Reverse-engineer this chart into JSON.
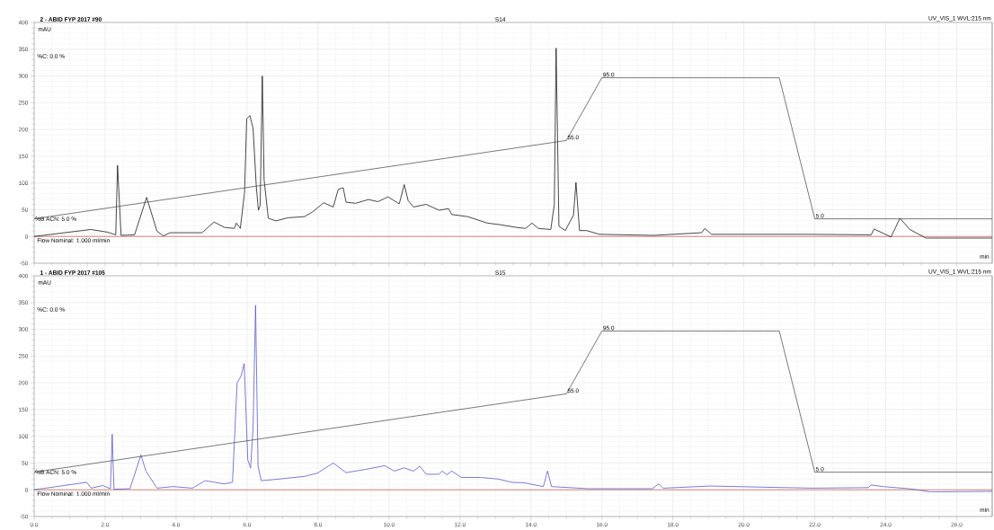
{
  "chart_data": [
    {
      "type": "line",
      "title": "2 - ABID FYP 2017 #90",
      "subtitle": "S14",
      "xlabel": "min",
      "ylabel": "mAU",
      "annotations": [
        "UV_VIS_1 WVL:215 nm",
        "%C: 0.0 %",
        "Flow Nominal: 1.000 ml/min"
      ],
      "xlim": [
        0,
        27
      ],
      "ylim": [
        -50,
        400
      ],
      "xticks": [
        {
          "value": 0,
          "label": null
        },
        {
          "value": 2,
          "label": null
        },
        {
          "value": 4,
          "label": null
        },
        {
          "value": 6,
          "label": null
        },
        {
          "value": 8,
          "label": null
        },
        {
          "value": 10,
          "label": null
        },
        {
          "value": 12,
          "label": null
        },
        {
          "value": 14,
          "label": null
        },
        {
          "value": 16,
          "label": null
        },
        {
          "value": 18,
          "label": null
        },
        {
          "value": 20,
          "label": null
        },
        {
          "value": 22,
          "label": null
        },
        {
          "value": 24,
          "label": null
        },
        {
          "value": 26,
          "label": null
        }
      ],
      "yticks": [
        -50,
        0,
        50,
        100,
        150,
        200,
        250,
        300,
        350,
        400
      ],
      "tick_labels": "y",
      "grid": true,
      "ref_lines": [
        {
          "axis": "y",
          "value": 0,
          "color": "#c0392b"
        }
      ],
      "series": [
        {
          "color": "#1a1a1a",
          "x": [
            0,
            1.6,
            2.07,
            2.3,
            2.35,
            2.45,
            2.83,
            3.17,
            3.46,
            3.64,
            3.83,
            4.73,
            5.07,
            5.36,
            5.64,
            5.7,
            5.81,
            5.93,
            5.99,
            6.08,
            6.17,
            6.26,
            6.32,
            6.37,
            6.43,
            6.48,
            6.6,
            6.81,
            7.16,
            7.62,
            7.85,
            8.07,
            8.16,
            8.43,
            8.57,
            8.71,
            8.79,
            9.06,
            9.42,
            9.69,
            9.97,
            10.29,
            10.43,
            10.54,
            10.69,
            11.05,
            11.41,
            11.68,
            11.77,
            12.22,
            12.77,
            13.13,
            13.58,
            13.85,
            14.03,
            14.21,
            14.56,
            14.66,
            14.71,
            14.79,
            14.97,
            15.2,
            15.27,
            15.37,
            15.57,
            15.93,
            17.46,
            18.81,
            18.9,
            19.09,
            21.7,
            23.59,
            23.67,
            24.15,
            24.4,
            24.68,
            25.13,
            27
          ],
          "values": [
            0,
            13,
            8,
            3,
            133,
            2,
            3,
            73,
            10,
            1,
            7,
            7,
            27,
            17,
            15,
            25,
            15,
            82,
            220,
            226,
            202,
            94,
            49,
            58,
            300,
            106,
            34,
            29,
            35,
            37,
            46,
            58,
            63,
            55,
            88,
            91,
            64,
            62,
            69,
            65,
            74,
            61,
            97,
            67,
            55,
            60,
            49,
            52,
            41,
            37,
            25,
            22,
            17,
            15,
            25,
            15,
            13,
            60,
            352,
            19,
            11,
            40,
            101,
            11,
            11,
            4,
            2,
            7,
            15,
            4,
            4,
            3,
            14,
            -1,
            34,
            13,
            -3,
            -3
          ]
        }
      ]
    },
    {
      "type": "line",
      "xlim": [
        0,
        27
      ],
      "ylim": [
        -23.3,
        130.3
      ],
      "tick_labels": false,
      "series": [
        {
          "color": "#404040",
          "x": [
            0,
            15,
            16,
            21,
            22,
            27
          ],
          "values": [
            5,
            55,
            95,
            95,
            5,
            5
          ],
          "value_labels": [
            "%B ACN: 5.0 %",
            "55.0",
            "95.0",
            null,
            "5.0",
            null
          ]
        }
      ]
    },
    {
      "type": "line",
      "title": "1 - ABID FYP 2017 #105",
      "subtitle": "S15",
      "xlabel": "min",
      "ylabel": "mAU",
      "annotations": [
        "UV_VIS_1 WVL:215 nm",
        "%C: 0.0 %",
        "Flow Nominal: 1.000 ml/min"
      ],
      "xlim": [
        0,
        27
      ],
      "ylim": [
        -50,
        400
      ],
      "xticks": [
        {
          "value": 0,
          "label": "0.0"
        },
        {
          "value": 2,
          "label": "2.0"
        },
        {
          "value": 4,
          "label": "4.0"
        },
        {
          "value": 6,
          "label": "6.0"
        },
        {
          "value": 8,
          "label": "8.0"
        },
        {
          "value": 10,
          "label": "10.0"
        },
        {
          "value": 12,
          "label": "12.0"
        },
        {
          "value": 14,
          "label": "14.0"
        },
        {
          "value": 16,
          "label": "16.0"
        },
        {
          "value": 18,
          "label": "18.0"
        },
        {
          "value": 20,
          "label": "20.0"
        },
        {
          "value": 22,
          "label": "22.0"
        },
        {
          "value": 24,
          "label": "24.0"
        },
        {
          "value": 26,
          "label": "26.0"
        }
      ],
      "yticks": [
        -50,
        0,
        50,
        100,
        150,
        200,
        250,
        300,
        350,
        400
      ],
      "grid": true,
      "ref_lines": [
        {
          "axis": "y",
          "value": 0,
          "color": "#c0392b"
        }
      ],
      "series": [
        {
          "color": "#5b5bc8",
          "x": [
            0,
            1.48,
            1.61,
            1.93,
            2.15,
            2.2,
            2.25,
            2.7,
            3.01,
            3.15,
            3.46,
            3.91,
            4.46,
            4.82,
            5.36,
            5.59,
            5.72,
            5.83,
            5.92,
            6.02,
            6.1,
            6.17,
            6.24,
            6.31,
            6.4,
            6.89,
            7.62,
            7.98,
            8.43,
            8.79,
            9.33,
            9.88,
            10.15,
            10.42,
            10.69,
            10.87,
            11.05,
            11.41,
            11.5,
            11.63,
            11.77,
            12.04,
            12.58,
            13.09,
            13.45,
            13.81,
            14.35,
            14.47,
            14.58,
            15.62,
            17.42,
            17.6,
            17.73,
            19.04,
            21.93,
            23.51,
            23.58,
            23.92,
            24.65,
            25.27,
            27
          ],
          "values": [
            0,
            14,
            3,
            8,
            2,
            104,
            1,
            2,
            65,
            35,
            3,
            6,
            3,
            17,
            11,
            14,
            200,
            212,
            236,
            56,
            41,
            116,
            345,
            44,
            17,
            20,
            25,
            31,
            50,
            32,
            38,
            45,
            35,
            41,
            35,
            44,
            29,
            29,
            35,
            28,
            35,
            23,
            23,
            20,
            14,
            13,
            6,
            35,
            6,
            2,
            2,
            11,
            3,
            7,
            3,
            4,
            9,
            6,
            2,
            -4,
            -3
          ]
        }
      ]
    },
    {
      "type": "line",
      "xlim": [
        0,
        27
      ],
      "ylim": [
        -23.3,
        130.3
      ],
      "tick_labels": false,
      "series": [
        {
          "color": "#404040",
          "x": [
            0,
            15,
            16,
            21,
            22,
            27
          ],
          "values": [
            5,
            55,
            95,
            95,
            5,
            5
          ],
          "value_labels": [
            "%B ACN: 5.0 %",
            "55.0",
            "95.0",
            null,
            "5.0",
            null
          ]
        }
      ]
    }
  ]
}
